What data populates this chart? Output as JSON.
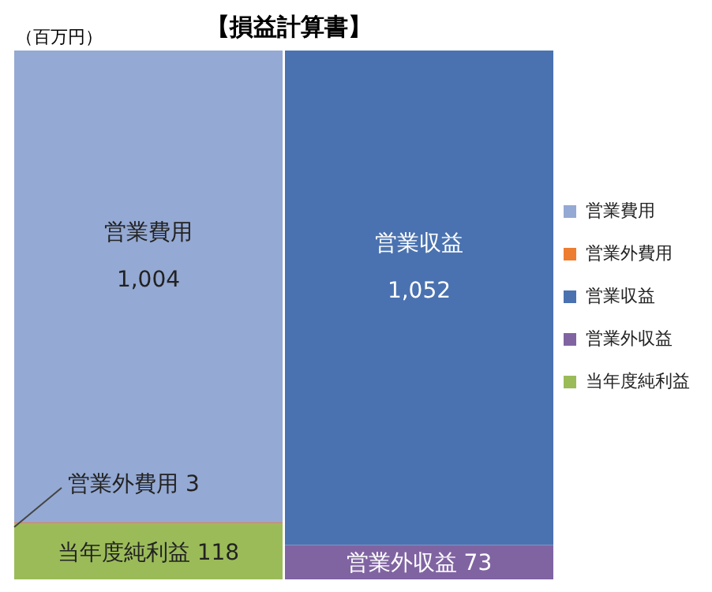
{
  "chart_data": {
    "type": "bar",
    "title": "【損益計算書】",
    "ylabel": "（百万円）",
    "categories": [
      null,
      null
    ],
    "stacked": true,
    "ylim": [
      0,
      1125
    ],
    "tick_labels": false,
    "legend": "right",
    "grid": false,
    "series": [
      {
        "name": "当年度純利益",
        "color": "#9bbb59",
        "values": [
          118,
          null
        ],
        "value_labels": [
          "118",
          null
        ]
      },
      {
        "name": "営業外収益",
        "color": "#8064a2",
        "values": [
          null,
          73
        ],
        "value_labels": [
          null,
          "73"
        ]
      },
      {
        "name": "営業収益",
        "color": "#4a72b0",
        "values": [
          null,
          1052
        ],
        "value_labels": [
          null,
          "1,052"
        ]
      },
      {
        "name": "営業外費用",
        "color": "#ed7d31",
        "values": [
          3,
          null
        ],
        "value_labels": [
          "3",
          null
        ]
      },
      {
        "name": "営業費用",
        "color": "#94a9d3",
        "values": [
          1004,
          null
        ],
        "value_labels": [
          "1,004",
          null
        ]
      }
    ]
  }
}
